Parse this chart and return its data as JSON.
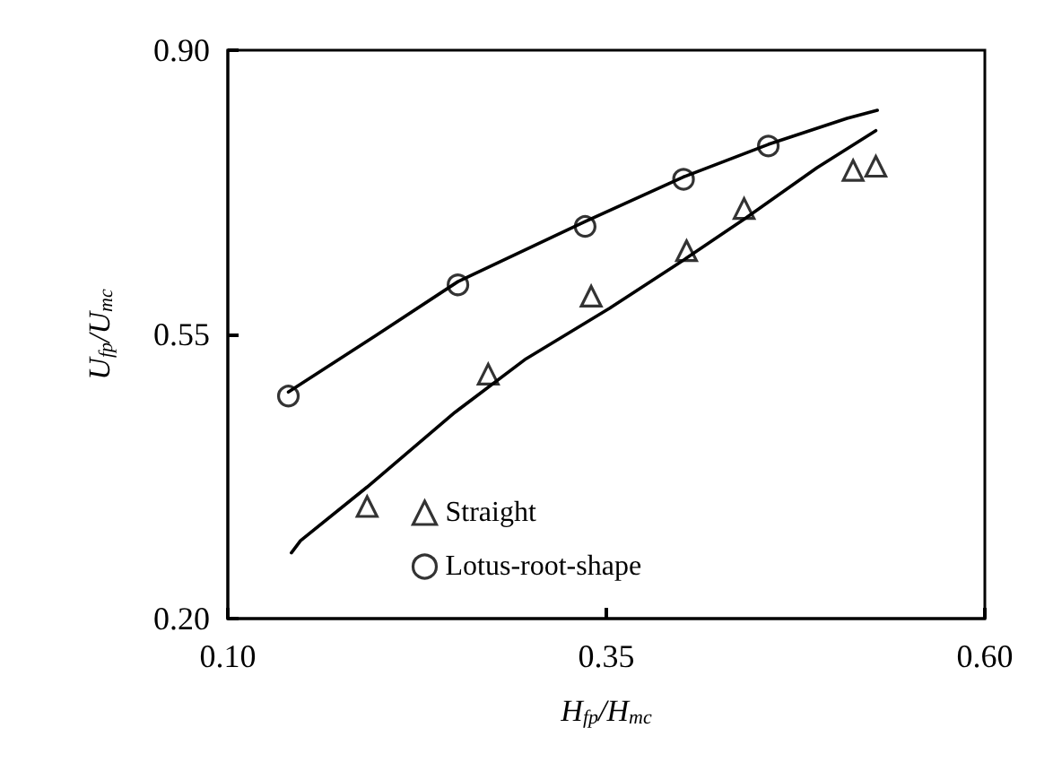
{
  "chart_data": {
    "type": "scatter",
    "xlabel": "H$_{fp}$/H$_{mc}$",
    "ylabel": "U$_{fp}$/U$_{mc}$",
    "xlim": [
      0.1,
      0.6
    ],
    "ylim": [
      0.2,
      0.9
    ],
    "xticks": [
      {
        "value": 0.1,
        "label": "0.10"
      },
      {
        "value": 0.35,
        "label": "0.35"
      },
      {
        "value": 0.6,
        "label": "0.60"
      }
    ],
    "yticks": [
      {
        "value": 0.2,
        "label": "0.20"
      },
      {
        "value": 0.55,
        "label": "0.55"
      },
      {
        "value": 0.9,
        "label": "0.90"
      }
    ],
    "grid": false,
    "legend": "bottom",
    "series": [
      {
        "name": "Straight",
        "type": "scatter",
        "marker": "triangle",
        "color": "#000000",
        "x": [
          0.192,
          0.272,
          0.34,
          0.403,
          0.441,
          0.513,
          0.528
        ],
        "values": [
          0.338,
          0.501,
          0.597,
          0.653,
          0.705,
          0.752,
          0.757
        ]
      },
      {
        "name": "Lotus-root-shape",
        "type": "scatter",
        "marker": "circle",
        "color": "#000000",
        "x": [
          0.14,
          0.252,
          0.336,
          0.401,
          0.457
        ],
        "values": [
          0.474,
          0.611,
          0.683,
          0.741,
          0.782
        ]
      },
      {
        "type": "line",
        "marker": "none",
        "line_style": "solid",
        "color": "#000000",
        "x": [
          0.142,
          0.148,
          0.192,
          0.25,
          0.297,
          0.352,
          0.403,
          0.441,
          0.489,
          0.528
        ],
        "values": [
          0.281,
          0.296,
          0.362,
          0.454,
          0.52,
          0.582,
          0.644,
          0.692,
          0.755,
          0.801
        ]
      },
      {
        "type": "line",
        "marker": "none",
        "line_style": "solid",
        "color": "#000000",
        "x": [
          0.14,
          0.198,
          0.252,
          0.336,
          0.401,
          0.457,
          0.509,
          0.529
        ],
        "values": [
          0.479,
          0.549,
          0.615,
          0.689,
          0.744,
          0.784,
          0.816,
          0.826
        ]
      }
    ]
  }
}
